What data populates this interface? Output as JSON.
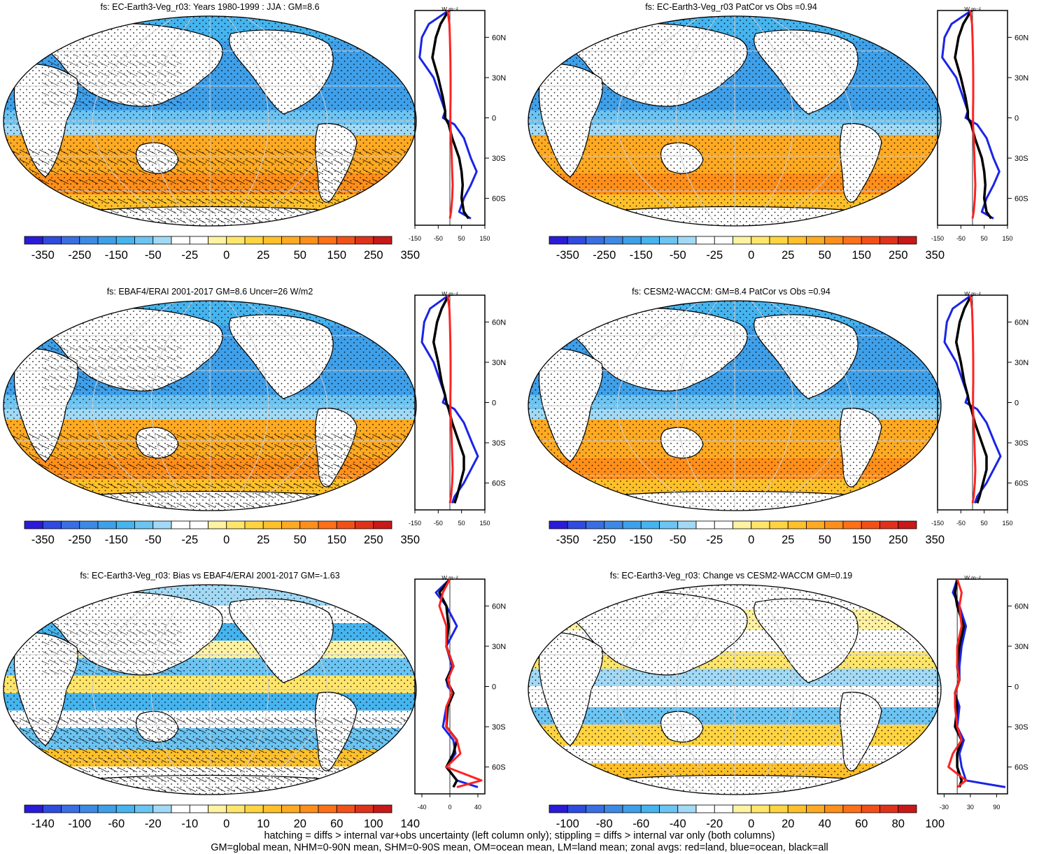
{
  "palettes": {
    "mean": [
      "#2a1bd8",
      "#2f4be0",
      "#3a6fe3",
      "#3d8ae6",
      "#3fa0ea",
      "#45b4ef",
      "#6cc4f2",
      "#a2daf6",
      "#ffffff",
      "#ffffff",
      "#fff2a0",
      "#ffe66a",
      "#ffd440",
      "#ffc02a",
      "#ffaa22",
      "#ff8f1a",
      "#ff7018",
      "#f25018",
      "#e0321a",
      "#c81818"
    ],
    "diff": [
      "#2a1bd8",
      "#2f4be0",
      "#3a6fe3",
      "#3d8ae6",
      "#3fa0ea",
      "#45b4ef",
      "#6cc4f2",
      "#a2daf6",
      "#ffffff",
      "#ffffff",
      "#fff2a0",
      "#ffe66a",
      "#ffd440",
      "#ffc02a",
      "#ffaa22",
      "#ff8f1a",
      "#ff7018",
      "#f25018",
      "#e0321a",
      "#c81818"
    ]
  },
  "colors": {
    "land": "#ff2222",
    "ocean": "#1a24e6",
    "all": "#000000",
    "land_fill": "#ffffff"
  },
  "icons": {
    "stipple": "stipple-pattern",
    "hatch": "hatch-pattern"
  },
  "panels": [
    {
      "title": "fs: EC-Earth3-Veg_r03: Years 1980-1999 : JJA : GM=8.6",
      "kind": "mean",
      "zonal_xticks": [
        "-150",
        "-50",
        "50",
        "150"
      ],
      "zonal_xvals": [
        -150,
        -50,
        50,
        150
      ],
      "zonal_xlim": [
        -150,
        150
      ],
      "cbar_labels": [
        "-350",
        "-250",
        "-150",
        "-50",
        "-25",
        "0",
        "25",
        "50",
        "150",
        "250",
        "350"
      ]
    },
    {
      "title": "fs: EC-Earth3-Veg_r03 PatCor vs Obs =0.94",
      "kind": "mean",
      "zonal_xticks": [
        "-150",
        "-50",
        "50",
        "150"
      ],
      "zonal_xvals": [
        -150,
        -50,
        50,
        150
      ],
      "zonal_xlim": [
        -150,
        150
      ],
      "cbar_labels": [
        "-350",
        "-250",
        "-150",
        "-50",
        "-25",
        "0",
        "25",
        "50",
        "150",
        "250",
        "350"
      ]
    },
    {
      "title": "fs: EBAF4/ERAI 2001-2017 GM=8.6 Uncer=26 W/m2",
      "kind": "mean",
      "zonal_xticks": [
        "-150",
        "-50",
        "50",
        "150"
      ],
      "zonal_xvals": [
        -150,
        -50,
        50,
        150
      ],
      "zonal_xlim": [
        -150,
        150
      ],
      "cbar_labels": [
        "-350",
        "-250",
        "-150",
        "-50",
        "-25",
        "0",
        "25",
        "50",
        "150",
        "250",
        "350"
      ]
    },
    {
      "title": "fs: CESM2-WACCM: GM=8.4 PatCor vs Obs =0.94",
      "kind": "mean",
      "zonal_xticks": [
        "-150",
        "-50",
        "50",
        "150"
      ],
      "zonal_xvals": [
        -150,
        -50,
        50,
        150
      ],
      "zonal_xlim": [
        -150,
        150
      ],
      "cbar_labels": [
        "-350",
        "-250",
        "-150",
        "-50",
        "-25",
        "0",
        "25",
        "50",
        "150",
        "250",
        "350"
      ]
    },
    {
      "title": "fs: EC-Earth3-Veg_r03: Bias vs EBAF4/ERAI 2001-2017 GM=-1.63",
      "kind": "diff",
      "zonal_xticks": [
        "-40",
        "0",
        "40"
      ],
      "zonal_xvals": [
        -40,
        0,
        40
      ],
      "zonal_xlim": [
        -50,
        50
      ],
      "cbar_labels": [
        "-140",
        "-100",
        "-60",
        "-20",
        "-10",
        "0",
        "10",
        "20",
        "60",
        "100",
        "140"
      ]
    },
    {
      "title": "fs: EC-Earth3-Veg_r03: Change vs CESM2-WACCM GM=0.19",
      "kind": "diff",
      "zonal_xticks": [
        "-30",
        "30",
        "90"
      ],
      "zonal_xvals": [
        -30,
        30,
        90
      ],
      "zonal_xlim": [
        -45,
        115
      ],
      "cbar_labels": [
        "-100",
        "-80",
        "-60",
        "-40",
        "-20",
        "0",
        "20",
        "40",
        "60",
        "80",
        "100"
      ]
    }
  ],
  "chart_data": [
    {
      "type": "line",
      "title": "fs: EC-Earth3-Veg_r03: Years 1980-1999 : JJA : GM=8.6",
      "ylabel": "",
      "xlabel": "",
      "yticks": [
        "60N",
        "30N",
        "0",
        "30S",
        "60S"
      ],
      "units": "W m-2",
      "lat": [
        80,
        70,
        60,
        45,
        30,
        15,
        5,
        0,
        -5,
        -15,
        -30,
        -40,
        -50,
        -60,
        -70,
        -75
      ],
      "series": [
        {
          "values": [
            -5,
            -40,
            -60,
            -75,
            -50,
            -30,
            -20,
            -20,
            -5,
            10,
            40,
            50,
            55,
            50,
            60,
            80
          ]
        },
        {
          "values": [
            -5,
            -90,
            -120,
            -130,
            -70,
            -40,
            -20,
            -30,
            20,
            60,
            90,
            115,
            90,
            60,
            40,
            90
          ]
        },
        {
          "values": [
            -10,
            -2,
            0,
            2,
            3,
            3,
            2,
            2,
            2,
            5,
            8,
            10,
            12,
            10,
            5,
            0
          ]
        }
      ]
    },
    {
      "type": "line",
      "title": "fs: EC-Earth3-Veg_r03 PatCor vs Obs =0.94",
      "ylabel": "",
      "xlabel": "",
      "yticks": [
        "60N",
        "30N",
        "0",
        "30S",
        "60S"
      ],
      "units": "W m-2",
      "lat": [
        80,
        70,
        60,
        45,
        30,
        15,
        5,
        0,
        -5,
        -15,
        -30,
        -40,
        -50,
        -60,
        -70,
        -75
      ],
      "series": [
        {
          "values": [
            -5,
            -40,
            -60,
            -75,
            -50,
            -30,
            -20,
            -20,
            -5,
            10,
            40,
            50,
            55,
            50,
            60,
            80
          ]
        },
        {
          "values": [
            -5,
            -90,
            -120,
            -130,
            -70,
            -40,
            -20,
            -30,
            20,
            60,
            90,
            115,
            90,
            60,
            40,
            90
          ]
        },
        {
          "values": [
            -10,
            -2,
            0,
            2,
            3,
            3,
            2,
            2,
            2,
            5,
            8,
            10,
            12,
            10,
            5,
            0
          ]
        }
      ]
    },
    {
      "type": "line",
      "title": "fs: EBAF4/ERAI 2001-2017 GM=8.6 Uncer=26 W/m2",
      "ylabel": "",
      "xlabel": "",
      "yticks": [
        "60N",
        "30N",
        "0",
        "30S",
        "60S"
      ],
      "units": "W m-2",
      "lat": [
        80,
        70,
        60,
        45,
        30,
        15,
        5,
        0,
        -5,
        -15,
        -30,
        -40,
        -50,
        -60,
        -70,
        -75
      ],
      "series": [
        {
          "values": [
            -5,
            -35,
            -55,
            -70,
            -50,
            -35,
            -20,
            -15,
            -5,
            10,
            40,
            60,
            60,
            45,
            30,
            20
          ]
        },
        {
          "values": [
            -5,
            -85,
            -110,
            -120,
            -70,
            -40,
            -20,
            -30,
            20,
            60,
            95,
            120,
            90,
            60,
            20,
            10
          ]
        },
        {
          "values": [
            -10,
            -2,
            0,
            2,
            3,
            3,
            2,
            2,
            2,
            5,
            8,
            10,
            12,
            10,
            5,
            0
          ]
        }
      ]
    },
    {
      "type": "line",
      "title": "fs: CESM2-WACCM: GM=8.4 PatCor vs Obs =0.94",
      "ylabel": "",
      "xlabel": "",
      "yticks": [
        "60N",
        "30N",
        "0",
        "30S",
        "60S"
      ],
      "units": "W m-2",
      "lat": [
        80,
        70,
        60,
        45,
        30,
        15,
        5,
        0,
        -5,
        -15,
        -30,
        -40,
        -50,
        -60,
        -70,
        -75
      ],
      "series": [
        {
          "values": [
            -5,
            -35,
            -55,
            -70,
            -50,
            -35,
            -20,
            -15,
            -5,
            10,
            40,
            60,
            60,
            45,
            30,
            20
          ]
        },
        {
          "values": [
            -5,
            -85,
            -110,
            -120,
            -70,
            -40,
            -20,
            -30,
            20,
            60,
            95,
            120,
            90,
            60,
            20,
            10
          ]
        },
        {
          "values": [
            -10,
            -2,
            0,
            2,
            3,
            3,
            2,
            2,
            2,
            5,
            8,
            10,
            12,
            10,
            5,
            0
          ]
        }
      ]
    },
    {
      "type": "line",
      "title": "fs: EC-Earth3-Veg_r03: Bias vs EBAF4/ERAI 2001-2017 GM=-1.63",
      "ylabel": "",
      "xlabel": "",
      "yticks": [
        "60N",
        "30N",
        "0",
        "30S",
        "60S"
      ],
      "units": "W m-2",
      "lat": [
        80,
        70,
        60,
        45,
        30,
        15,
        5,
        0,
        -5,
        -15,
        -30,
        -40,
        -50,
        -60,
        -70,
        -75
      ],
      "series": [
        {
          "values": [
            0,
            -15,
            -5,
            -2,
            -5,
            5,
            -5,
            0,
            5,
            -3,
            -5,
            10,
            5,
            -5,
            10,
            5
          ]
        },
        {
          "values": [
            0,
            -20,
            -5,
            10,
            -5,
            3,
            -5,
            -3,
            5,
            -5,
            -10,
            5,
            8,
            -5,
            10,
            40
          ]
        },
        {
          "values": [
            0,
            -10,
            -15,
            -5,
            -5,
            5,
            -3,
            0,
            3,
            -5,
            -5,
            10,
            15,
            -5,
            45,
            10
          ]
        }
      ]
    },
    {
      "type": "line",
      "title": "fs: EC-Earth3-Veg_r03: Change vs CESM2-WACCM GM=0.19",
      "ylabel": "",
      "xlabel": "",
      "yticks": [
        "60N",
        "30N",
        "0",
        "30S",
        "60S"
      ],
      "units": "W m-2",
      "lat": [
        80,
        70,
        60,
        45,
        30,
        15,
        5,
        0,
        -5,
        -15,
        -30,
        -40,
        -50,
        -60,
        -70,
        -75
      ],
      "series": [
        {
          "values": [
            0,
            -5,
            0,
            15,
            5,
            0,
            5,
            0,
            -5,
            0,
            -5,
            10,
            0,
            0,
            10,
            5
          ]
        },
        {
          "values": [
            0,
            -10,
            5,
            20,
            10,
            5,
            5,
            0,
            -5,
            5,
            0,
            15,
            5,
            10,
            20,
            110
          ]
        },
        {
          "values": [
            0,
            10,
            5,
            10,
            0,
            0,
            5,
            0,
            -5,
            -5,
            0,
            10,
            -10,
            -20,
            20,
            0
          ]
        }
      ]
    }
  ],
  "zonal_yticks": [
    "60N",
    "30N",
    "0",
    "30S",
    "60S"
  ],
  "zonal_yvals": [
    60,
    30,
    0,
    -30,
    -60
  ],
  "zonal_unit_label": "W m⁻²",
  "footnote": {
    "line1": "hatching = diffs > internal var+obs uncertainty (left column only); stippling = diffs > internal var only (both columns)",
    "line2": "GM=global mean, NHM=0-90N mean, SHM=0-90S mean, OM=ocean mean, LM=land mean; zonal avgs: red=land, blue=ocean, black=all"
  }
}
